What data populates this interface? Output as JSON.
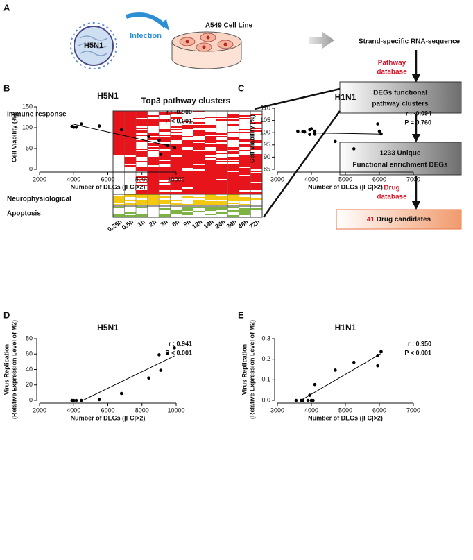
{
  "panel_a": {
    "label": "A",
    "virus": "H5N1",
    "infection": "Infection",
    "cell_line": "A549 Cell Line",
    "sequencing": "Strand-specific RNA-sequence",
    "pathway_db": [
      "Pathway",
      "database"
    ],
    "box1": [
      "DEGs functional",
      "pathway clusters"
    ],
    "box2": [
      "1233  Unique",
      "Functional enrichment DEGs"
    ],
    "drug_db": [
      "Drug",
      "database"
    ],
    "box3": {
      "count": "41",
      "text": "Drug candidates"
    },
    "heatmap_title": "Top3 pathway clusters",
    "clusters": [
      "Immune response",
      "Neurophysiological",
      "Apoptosis"
    ],
    "timepoints": [
      "0.25h",
      "0.5h",
      "1h",
      "2h",
      "3h",
      "6h",
      "9h",
      "12h",
      "18h",
      "24h",
      "36h",
      "48h",
      "72h"
    ]
  },
  "chart_data": [
    {
      "type": "scatter",
      "panel": "B",
      "title": "H5N1",
      "xlabel": "Number of DEGs (|FC|>2)",
      "ylabel": [
        "Cell Viability (%)"
      ],
      "annotations": [
        "r : -0.900",
        "P < 0.001"
      ],
      "x": [
        3900,
        4000,
        4150,
        4450,
        5500,
        6800,
        8400,
        9000,
        9100,
        9500,
        9900
      ],
      "values": [
        103,
        101,
        101,
        109,
        104,
        95,
        79,
        70,
        36,
        57,
        52
      ],
      "color": "#000000",
      "fit_line": true,
      "xlim": [
        2000,
        10000
      ],
      "xticks": [
        2000,
        4000,
        6000,
        8000,
        10000
      ],
      "ylim": [
        0,
        150
      ],
      "yticks": [
        0,
        50,
        100,
        150
      ]
    },
    {
      "type": "scatter",
      "panel": "C",
      "title": "H1N1",
      "xlabel": "Number of DEGs (|FC|>2)",
      "ylabel": [
        "Cell Viability (%)"
      ],
      "annotations": [
        "r : -0.094",
        "P = 0.760"
      ],
      "x": [
        3600,
        3750,
        3800,
        3950,
        3950,
        4000,
        4100,
        4100,
        4700,
        5250,
        5950,
        6000,
        6050
      ],
      "values": [
        100.6,
        100.5,
        100.3,
        99.3,
        101.2,
        101.6,
        99.4,
        100.6,
        96.4,
        93.4,
        103.6,
        100.6,
        99.5
      ],
      "color": "#000000",
      "fit_line": true,
      "xlim": [
        3000,
        7000
      ],
      "xticks": [
        3000,
        4000,
        5000,
        6000,
        7000
      ],
      "ylim": [
        85,
        110
      ],
      "yticks": [
        85,
        90,
        95,
        100,
        105,
        110
      ]
    },
    {
      "type": "scatter",
      "panel": "D",
      "title": "H5N1",
      "xlabel": "Number of DEGs (|FC|>2)",
      "ylabel": [
        "Virus Replication",
        "(Relative Expression Level of M2)"
      ],
      "annotations": [
        "r :  0.941",
        "P < 0.001"
      ],
      "x": [
        3900,
        4000,
        4150,
        4450,
        5500,
        6800,
        8400,
        9000,
        9100,
        9500,
        9900
      ],
      "values": [
        0,
        0,
        0,
        0,
        1,
        9,
        29,
        59,
        39,
        61,
        68
      ],
      "color": "#000000",
      "fit_line": true,
      "xlim": [
        2000,
        10000
      ],
      "xticks": [
        2000,
        4000,
        6000,
        8000,
        10000
      ],
      "ylim": [
        0,
        80
      ],
      "yticks": [
        0,
        20,
        40,
        60,
        80
      ]
    },
    {
      "type": "scatter",
      "panel": "E",
      "title": "H1N1",
      "xlabel": "Number of DEGs (|FC|>2)",
      "ylabel": [
        "Virus Replication",
        "(Relative Expression Level of M2)"
      ],
      "annotations": [
        "r :  0.950",
        "P < 0.001"
      ],
      "x": [
        3550,
        3700,
        3750,
        3900,
        3950,
        4000,
        4050,
        4100,
        4700,
        5250,
        5950,
        5950,
        6050
      ],
      "values": [
        0,
        0,
        0,
        0,
        0.025,
        0,
        0,
        0.077,
        0.147,
        0.185,
        0.168,
        0.218,
        0.237
      ],
      "color": "#000000",
      "fit_line": true,
      "xlim": [
        3000,
        7000
      ],
      "xticks": [
        3000,
        4000,
        5000,
        6000,
        7000
      ],
      "ylim": [
        0,
        0.3
      ],
      "yticks": [
        {
          "value": 0,
          "label": "0.0"
        },
        0.1,
        0.2,
        0.3
      ]
    }
  ]
}
